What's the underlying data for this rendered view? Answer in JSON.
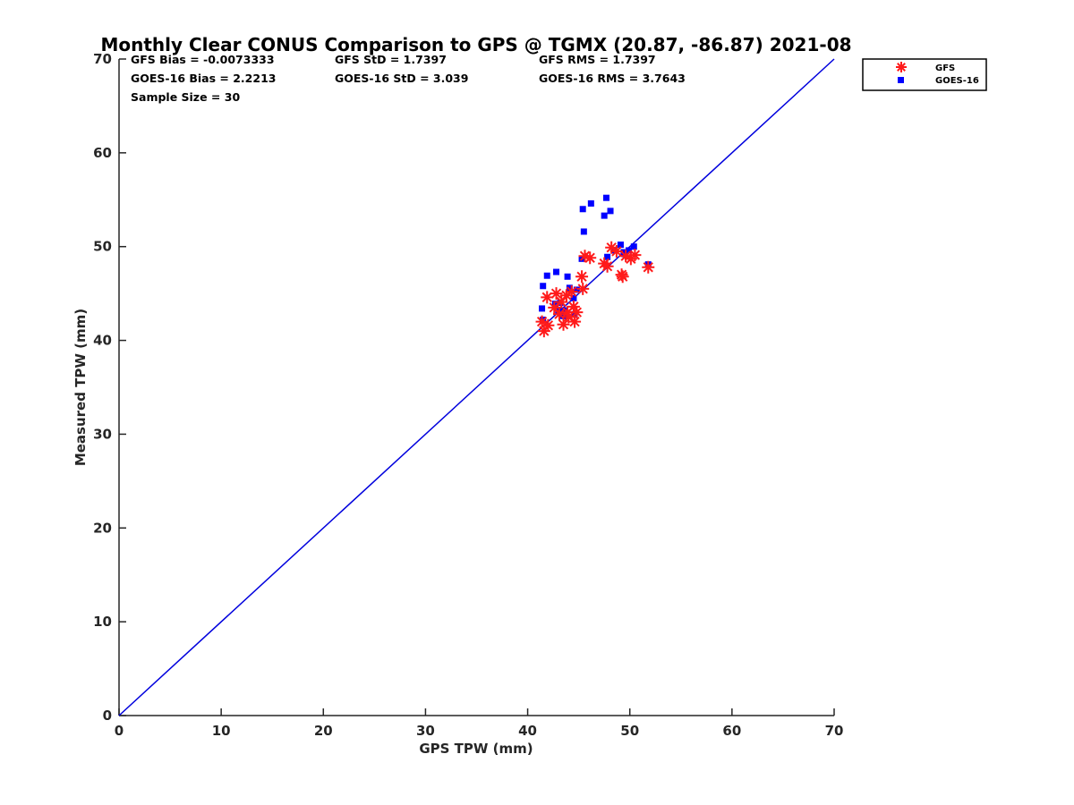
{
  "chart_data": {
    "type": "scatter",
    "title": "Monthly Clear CONUS Comparison to GPS @ TGMX (20.87, -86.87) 2021-08",
    "xlabel": "GPS TPW (mm)",
    "ylabel": "Measured TPW (mm)",
    "xlim": [
      0,
      70
    ],
    "ylim": [
      0,
      70
    ],
    "xticks": [
      "0",
      "10",
      "20",
      "30",
      "40",
      "50",
      "60",
      "70"
    ],
    "yticks": [
      "0",
      "10",
      "20",
      "30",
      "40",
      "50",
      "60",
      "70"
    ],
    "grid": false,
    "legend_position": "top-right, outside plot area",
    "stats": {
      "gfs_bias": "GFS Bias = -0.0073333",
      "gfs_std": "GFS StD = 1.7397",
      "gfs_rms": "GFS RMS = 1.7397",
      "goes_bias": "GOES-16 Bias = 2.2213",
      "goes_std": "GOES-16 StD = 3.039",
      "goes_rms": "GOES-16 RMS = 3.7643",
      "sample_size": "Sample Size = 30"
    },
    "reference_line": {
      "x": [
        0,
        70
      ],
      "y": [
        0,
        70
      ],
      "color": "#0000dd"
    },
    "series": [
      {
        "name": "GFS",
        "marker": "asterisk",
        "color": "#ff1a1a",
        "points": [
          [
            41.4,
            42.0
          ],
          [
            41.6,
            41.0
          ],
          [
            41.9,
            44.6
          ],
          [
            42.0,
            41.6
          ],
          [
            42.6,
            43.5
          ],
          [
            42.8,
            45.0
          ],
          [
            43.1,
            42.8
          ],
          [
            43.3,
            44.1
          ],
          [
            43.5,
            41.7
          ],
          [
            43.8,
            44.8
          ],
          [
            43.9,
            43.0
          ],
          [
            44.0,
            42.5
          ],
          [
            44.3,
            45.2
          ],
          [
            44.5,
            43.6
          ],
          [
            44.6,
            42.0
          ],
          [
            44.8,
            43.0
          ],
          [
            45.3,
            46.8
          ],
          [
            45.4,
            45.5
          ],
          [
            45.6,
            49.0
          ],
          [
            46.1,
            48.8
          ],
          [
            47.5,
            48.2
          ],
          [
            47.8,
            47.9
          ],
          [
            48.2,
            49.9
          ],
          [
            48.7,
            49.5
          ],
          [
            49.2,
            47.0
          ],
          [
            49.3,
            46.8
          ],
          [
            49.6,
            49.0
          ],
          [
            50.1,
            48.7
          ],
          [
            50.5,
            49.1
          ],
          [
            51.8,
            47.8
          ]
        ]
      },
      {
        "name": "GOES-16",
        "marker": "square",
        "color": "#0000ff",
        "points": [
          [
            41.4,
            43.4
          ],
          [
            41.5,
            45.8
          ],
          [
            41.5,
            42.2
          ],
          [
            41.9,
            46.9
          ],
          [
            42.7,
            43.9
          ],
          [
            42.8,
            47.3
          ],
          [
            43.2,
            44.0
          ],
          [
            43.5,
            42.6
          ],
          [
            43.6,
            43.2
          ],
          [
            43.9,
            46.8
          ],
          [
            44.1,
            45.6
          ],
          [
            44.5,
            44.5
          ],
          [
            44.6,
            42.8
          ],
          [
            45.3,
            48.7
          ],
          [
            45.4,
            54.0
          ],
          [
            45.5,
            51.6
          ],
          [
            46.2,
            54.6
          ],
          [
            47.5,
            53.3
          ],
          [
            47.7,
            55.2
          ],
          [
            48.1,
            53.8
          ],
          [
            48.5,
            49.6
          ],
          [
            49.1,
            50.2
          ],
          [
            49.5,
            49.2
          ],
          [
            49.9,
            49.6
          ],
          [
            50.4,
            50.0
          ],
          [
            51.8,
            48.1
          ],
          [
            44.8,
            45.4
          ],
          [
            43.0,
            43.2
          ],
          [
            47.8,
            48.9
          ],
          [
            49.4,
            49.4
          ]
        ]
      }
    ]
  }
}
